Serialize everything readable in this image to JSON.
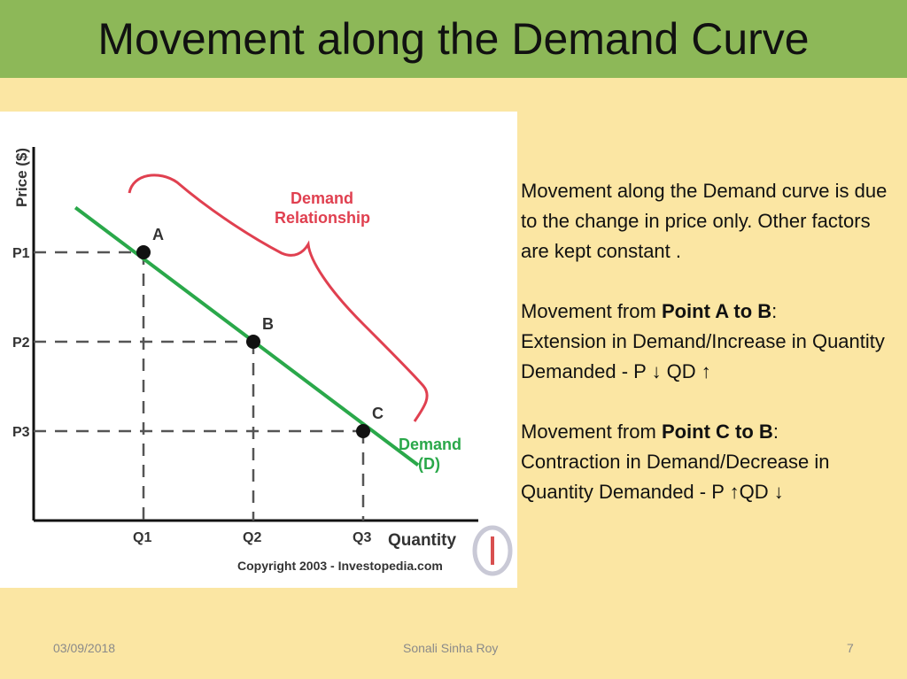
{
  "slide": {
    "title": "Movement along the Demand Curve",
    "footer": {
      "date": "03/09/2018",
      "author": "Sonali Sinha Roy",
      "page": "7"
    },
    "text": {
      "p1": "Movement along the Demand curve is due to the change in price only. Other factors are kept constant .",
      "p2_prefix": "Movement from ",
      "p2_bold": "Point  A to B",
      "p2_colon": ":",
      "p2_rest": "Extension in Demand/Increase in Quantity Demanded - P ↓ QD ↑",
      "p3_prefix": "Movement from ",
      "p3_bold": "Point  C to B",
      "p3_colon": ":",
      "p3_rest": "Contraction in Demand/Decrease in Quantity Demanded - P ↑QD ↓"
    }
  },
  "chart_data": {
    "type": "line",
    "title": "",
    "xlabel": "Quantity",
    "ylabel": "Price ($)",
    "grid": false,
    "x_ticks": [
      "Q1",
      "Q2",
      "Q3"
    ],
    "y_ticks": [
      "P1",
      "P2",
      "P3"
    ],
    "points": [
      {
        "label": "A",
        "x": 1,
        "y": 3
      },
      {
        "label": "B",
        "x": 2,
        "y": 2
      },
      {
        "label": "C",
        "x": 3,
        "y": 1
      }
    ],
    "series": [
      {
        "name": "Demand (D)",
        "x": [
          0.38,
          3.5
        ],
        "y": [
          3.5,
          0.62
        ]
      }
    ],
    "annotations": {
      "brace_label_line1": "Demand",
      "brace_label_line2": "Relationship",
      "curve_label_line1": "Demand",
      "curve_label_line2": "(D)",
      "copyright": "Copyright 2003 - Investopedia.com"
    },
    "colors": {
      "curve": "#2aa84a",
      "brace": "#e04050",
      "axis": "#111111"
    }
  }
}
